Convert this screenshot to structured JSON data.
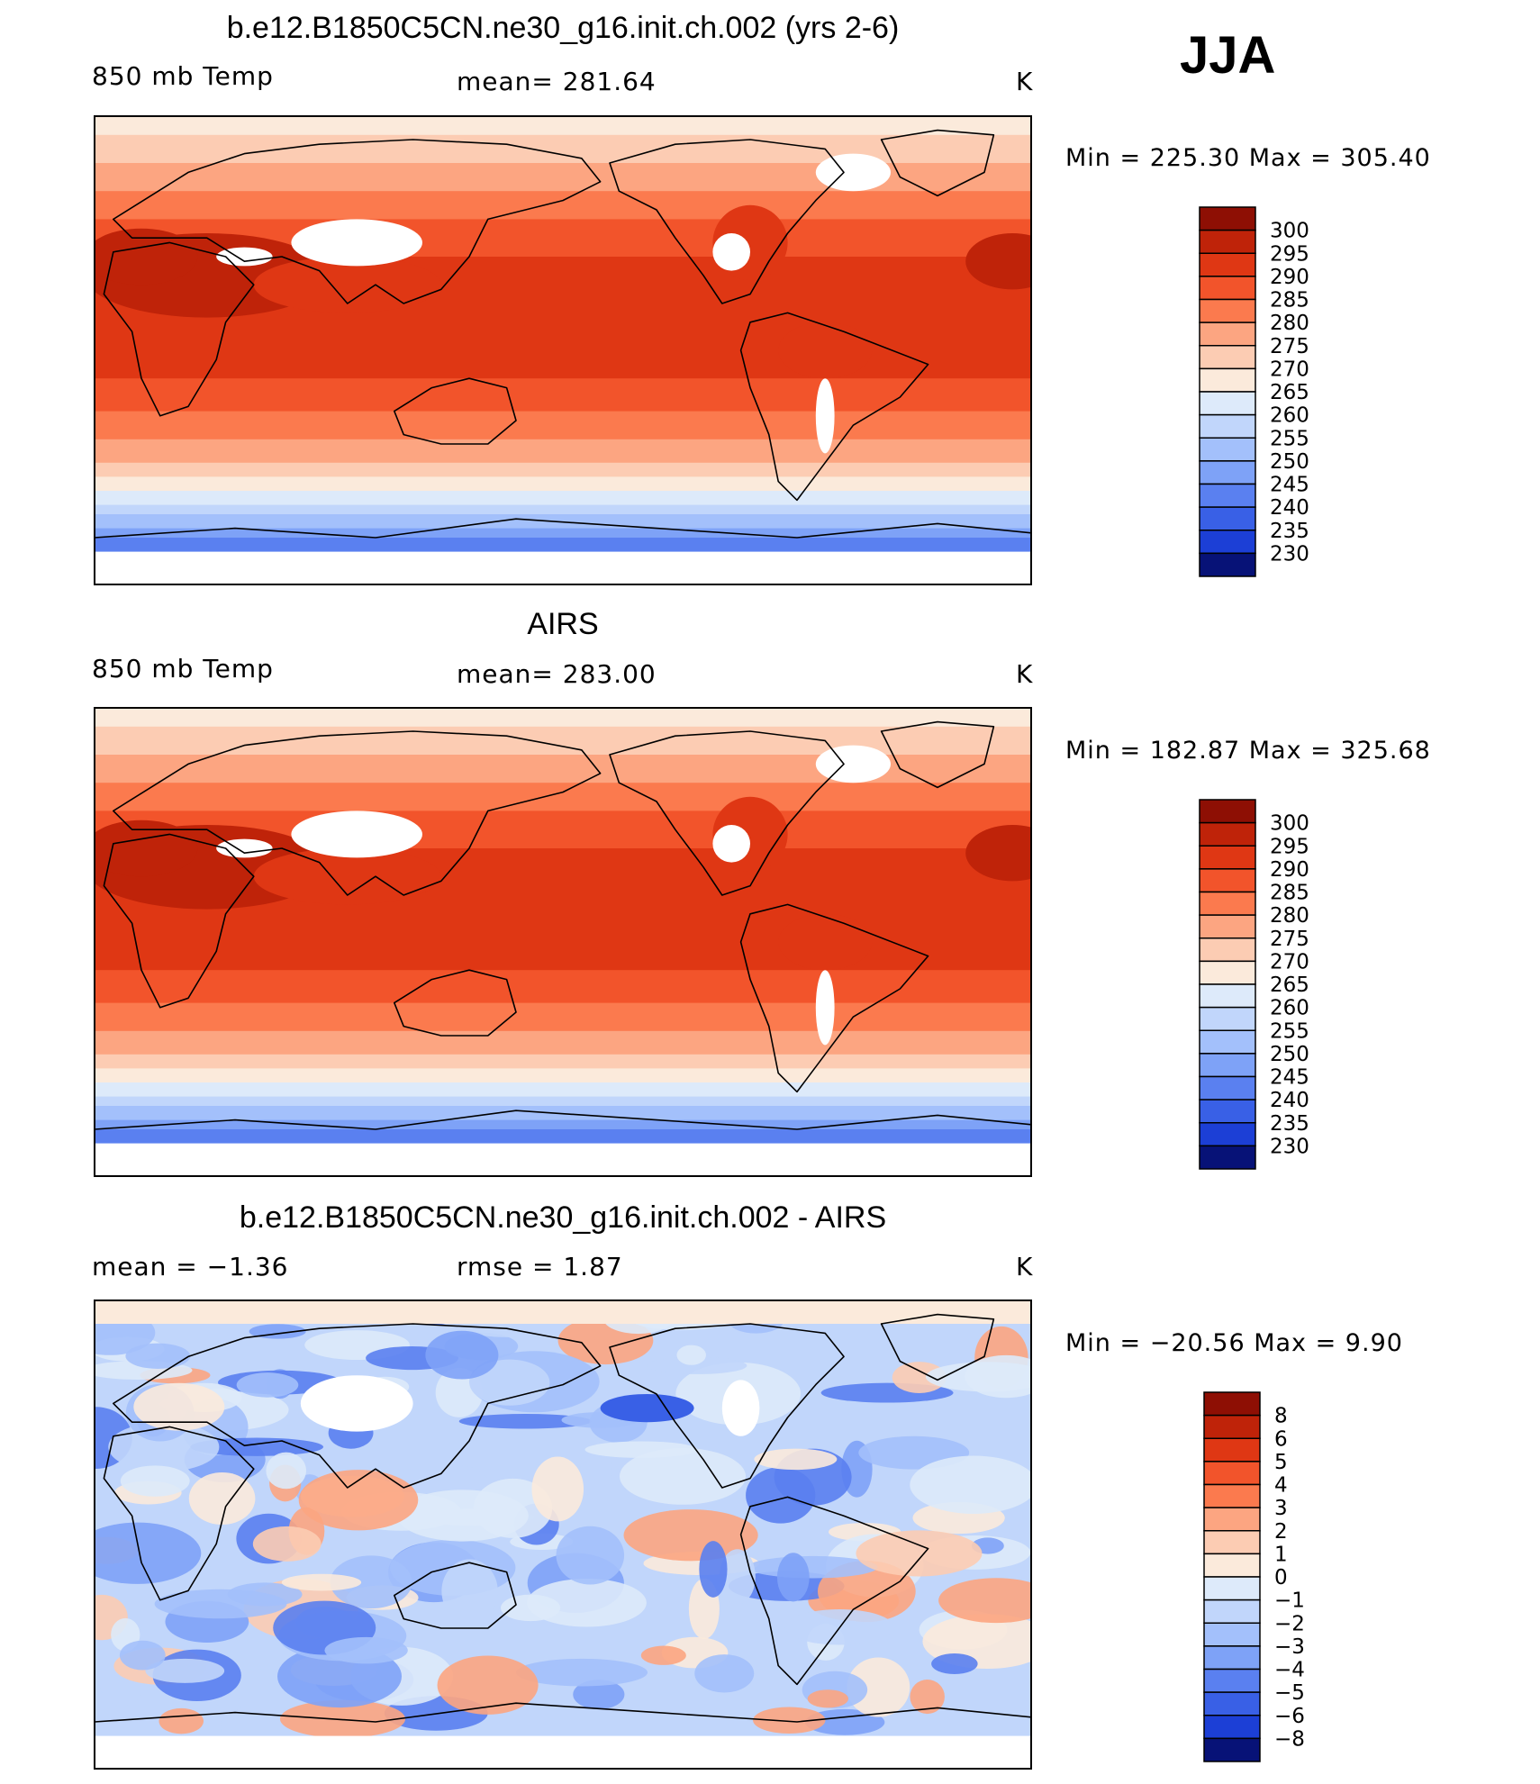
{
  "season": "JJA",
  "colors": {
    "warm": [
      "#fbeadb",
      "#fcccb3",
      "#fca581",
      "#fb7a4e",
      "#f2542b",
      "#df3714",
      "#bf2309",
      "#8e0f04"
    ],
    "cool": [
      "#ddeafa",
      "#c1d6fb",
      "#a3c0fb",
      "#7ea2f7",
      "#5a80f0",
      "#3960e6",
      "#1c3fd6",
      "#0c23a8",
      "#071277"
    ],
    "diffWarm": [
      "#fbeadb",
      "#fcccb3",
      "#fca581",
      "#fb7a4e",
      "#f2542b",
      "#df3714",
      "#bf2309",
      "#8e0f04"
    ],
    "diffCool": [
      "#ddeafa",
      "#c1d6fb",
      "#a3c0fb",
      "#7ea2f7",
      "#5a80f0",
      "#3960e6",
      "#1c3fd6",
      "#0c23a8",
      "#071277"
    ]
  },
  "chart_data": [
    {
      "type": "heatmap",
      "title": "b.e12.B1850C5CN.ne30_g16.init.ch.002 (yrs 2-6)",
      "left_label": "850 mb Temp",
      "center_label": "mean=  281.64",
      "units": "K",
      "stats": "Min  =  225.30  Max  =  305.40",
      "colorbar_levels": [
        "300",
        "295",
        "290",
        "285",
        "280",
        "275",
        "270",
        "265",
        "260",
        "255",
        "250",
        "245",
        "240",
        "235",
        "230"
      ],
      "mean": 281.64,
      "min": 225.3,
      "max": 305.4
    },
    {
      "type": "heatmap",
      "title": "AIRS",
      "left_label": "850 mb Temp",
      "center_label": "mean=  283.00",
      "units": "K",
      "stats": "Min  =  182.87  Max  =  325.68",
      "colorbar_levels": [
        "300",
        "295",
        "290",
        "285",
        "280",
        "275",
        "270",
        "265",
        "260",
        "255",
        "250",
        "245",
        "240",
        "235",
        "230"
      ],
      "mean": 283.0,
      "min": 182.87,
      "max": 325.68
    },
    {
      "type": "heatmap",
      "title": "b.e12.B1850C5CN.ne30_g16.init.ch.002 - AIRS",
      "left_label": "mean  =    −1.36",
      "center_label": "rmse  =     1.87",
      "units": "K",
      "stats": "Min  =  −20.56  Max  =     9.90",
      "colorbar_levels": [
        "8",
        "6",
        "5",
        "4",
        "3",
        "2",
        "1",
        "0",
        "−1",
        "−2",
        "−3",
        "−4",
        "−5",
        "−6",
        "−8"
      ],
      "mean": -1.36,
      "rmse": 1.87,
      "min": -20.56,
      "max": 9.9
    }
  ]
}
